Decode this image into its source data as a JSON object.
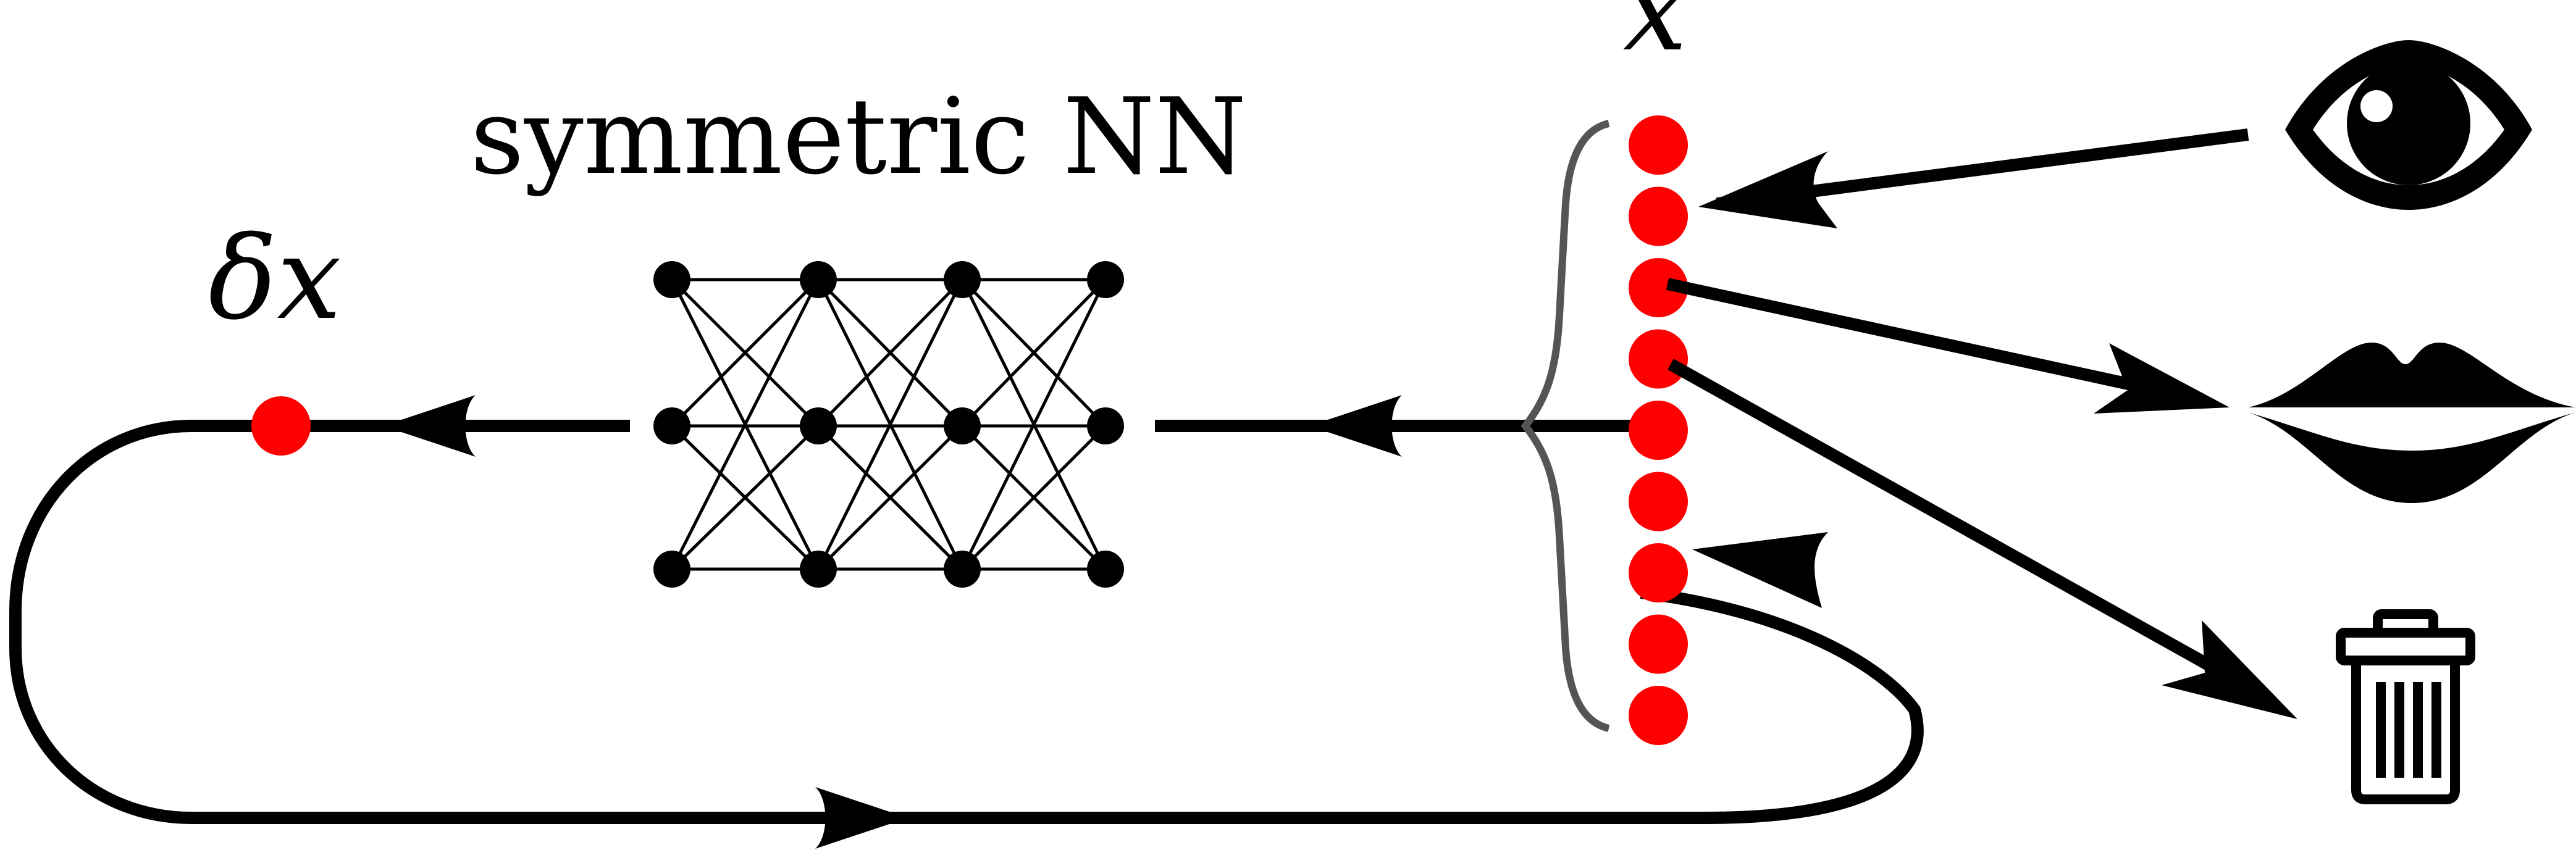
{
  "labels": {
    "nn_title": "symmetric NN",
    "delta_x": "δx",
    "x": "x"
  },
  "network": {
    "layers": [
      3,
      3,
      3,
      3
    ]
  },
  "state_vector": {
    "count": 9,
    "highlight_index": 1
  },
  "icons": [
    "eye-icon",
    "mouth-icon",
    "trash-icon"
  ],
  "colors": {
    "node": "#000000",
    "state": "#ff0000",
    "line": "#000000",
    "brace": "#555555"
  }
}
